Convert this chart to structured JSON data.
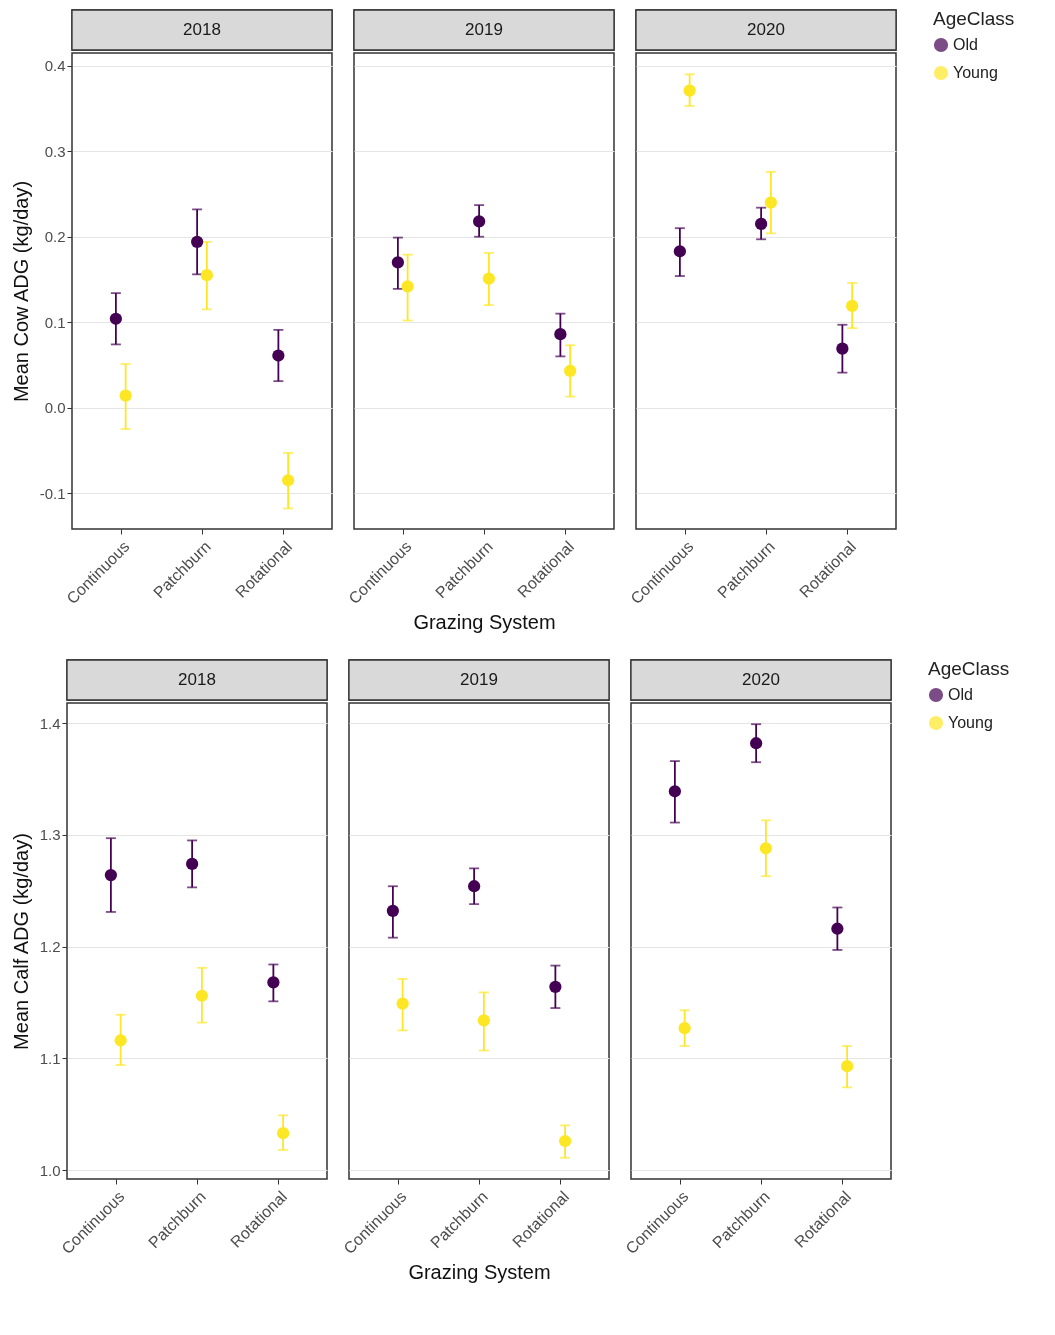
{
  "chart_data": [
    {
      "type": "scatter",
      "title": "2018",
      "ylabel": "Mean Cow ADG (kg/day)",
      "categories": [
        "Continuous",
        "Patchburn",
        "Rotational"
      ],
      "ylim": [
        -0.142,
        0.415
      ],
      "yticks": [
        {
          "value": -0.1,
          "label": "-0.1"
        },
        {
          "value": 0,
          "label": "0.0"
        },
        0.1,
        0.2,
        0.3,
        0.4
      ],
      "grid": "y",
      "marker": "circle",
      "series": [
        {
          "color": "#440154",
          "values": [
            0.104,
            0.194,
            0.061
          ],
          "errors": [
            [
              0.074,
              0.134
            ],
            [
              0.156,
              0.232
            ],
            [
              0.031,
              0.091
            ]
          ]
        },
        {
          "color": "#fde725",
          "values": [
            0.014,
            0.155,
            -0.085
          ],
          "errors": [
            [
              -0.025,
              0.051
            ],
            [
              0.115,
              0.194
            ],
            [
              -0.118,
              -0.053
            ]
          ]
        }
      ]
    },
    {
      "type": "scatter",
      "title": "2019",
      "xlabel": "Grazing System",
      "categories": [
        "Continuous",
        "Patchburn",
        "Rotational"
      ],
      "ylim": [
        -0.142,
        0.415
      ],
      "yticks": [
        -0.1,
        0,
        0.1,
        0.2,
        0.3,
        0.4
      ],
      "grid": "y",
      "marker": "circle",
      "tick_labels": "x",
      "series": [
        {
          "color": "#440154",
          "values": [
            0.17,
            0.218,
            0.086
          ],
          "errors": [
            [
              0.139,
              0.199
            ],
            [
              0.2,
              0.237
            ],
            [
              0.06,
              0.11
            ]
          ]
        },
        {
          "color": "#fde725",
          "values": [
            0.142,
            0.151,
            0.043
          ],
          "errors": [
            [
              0.102,
              0.179
            ],
            [
              0.12,
              0.181
            ],
            [
              0.013,
              0.073
            ]
          ]
        }
      ]
    },
    {
      "type": "scatter",
      "title": "2020",
      "categories": [
        "Continuous",
        "Patchburn",
        "Rotational"
      ],
      "ylim": [
        -0.142,
        0.415
      ],
      "yticks": [
        -0.1,
        0,
        0.1,
        0.2,
        0.3,
        0.4
      ],
      "grid": "y",
      "marker": "circle",
      "tick_labels": "x",
      "legend": "right",
      "legend_title": "AgeClass",
      "series": [
        {
          "name": "Old",
          "color": "#440154",
          "values": [
            0.183,
            0.215,
            0.069
          ],
          "errors": [
            [
              0.154,
              0.21
            ],
            [
              0.197,
              0.234
            ],
            [
              0.041,
              0.097
            ]
          ]
        },
        {
          "name": "Young",
          "color": "#fde725",
          "values": [
            0.371,
            0.24,
            0.119
          ],
          "errors": [
            [
              0.353,
              0.39
            ],
            [
              0.204,
              0.276
            ],
            [
              0.093,
              0.146
            ]
          ]
        }
      ]
    },
    {
      "type": "scatter",
      "title": "2018",
      "ylabel": "Mean Calf ADG (kg/day)",
      "categories": [
        "Continuous",
        "Patchburn",
        "Rotational"
      ],
      "ylim": [
        0.992,
        1.418
      ],
      "yticks": [
        {
          "value": 1,
          "label": "1.0"
        },
        1.1,
        1.2,
        1.3,
        1.4
      ],
      "grid": "y",
      "marker": "circle",
      "series": [
        {
          "color": "#440154",
          "values": [
            1.264,
            1.274,
            1.168
          ],
          "errors": [
            [
              1.231,
              1.297
            ],
            [
              1.253,
              1.295
            ],
            [
              1.151,
              1.184
            ]
          ]
        },
        {
          "color": "#fde725",
          "values": [
            1.116,
            1.156,
            1.033
          ],
          "errors": [
            [
              1.094,
              1.139
            ],
            [
              1.132,
              1.181
            ],
            [
              1.018,
              1.049
            ]
          ]
        }
      ]
    },
    {
      "type": "scatter",
      "title": "2019",
      "xlabel": "Grazing System",
      "categories": [
        "Continuous",
        "Patchburn",
        "Rotational"
      ],
      "ylim": [
        0.992,
        1.418
      ],
      "yticks": [
        1,
        1.1,
        1.2,
        1.3,
        1.4
      ],
      "grid": "y",
      "marker": "circle",
      "tick_labels": "x",
      "series": [
        {
          "color": "#440154",
          "values": [
            1.232,
            1.254,
            1.164
          ],
          "errors": [
            [
              1.208,
              1.254
            ],
            [
              1.238,
              1.27
            ],
            [
              1.145,
              1.183
            ]
          ]
        },
        {
          "color": "#fde725",
          "values": [
            1.149,
            1.134,
            1.026
          ],
          "errors": [
            [
              1.125,
              1.171
            ],
            [
              1.107,
              1.159
            ],
            [
              1.011,
              1.04
            ]
          ]
        }
      ]
    },
    {
      "type": "scatter",
      "title": "2020",
      "categories": [
        "Continuous",
        "Patchburn",
        "Rotational"
      ],
      "ylim": [
        0.992,
        1.418
      ],
      "yticks": [
        1,
        1.1,
        1.2,
        1.3,
        1.4
      ],
      "grid": "y",
      "marker": "circle",
      "tick_labels": "x",
      "legend": "right",
      "legend_title": "AgeClass",
      "series": [
        {
          "name": "Old",
          "color": "#440154",
          "values": [
            1.339,
            1.382,
            1.216
          ],
          "errors": [
            [
              1.311,
              1.366
            ],
            [
              1.365,
              1.399
            ],
            [
              1.197,
              1.235
            ]
          ]
        },
        {
          "name": "Young",
          "color": "#fde725",
          "values": [
            1.127,
            1.288,
            1.093
          ],
          "errors": [
            [
              1.111,
              1.143
            ],
            [
              1.263,
              1.313
            ],
            [
              1.074,
              1.111
            ]
          ]
        }
      ]
    }
  ]
}
